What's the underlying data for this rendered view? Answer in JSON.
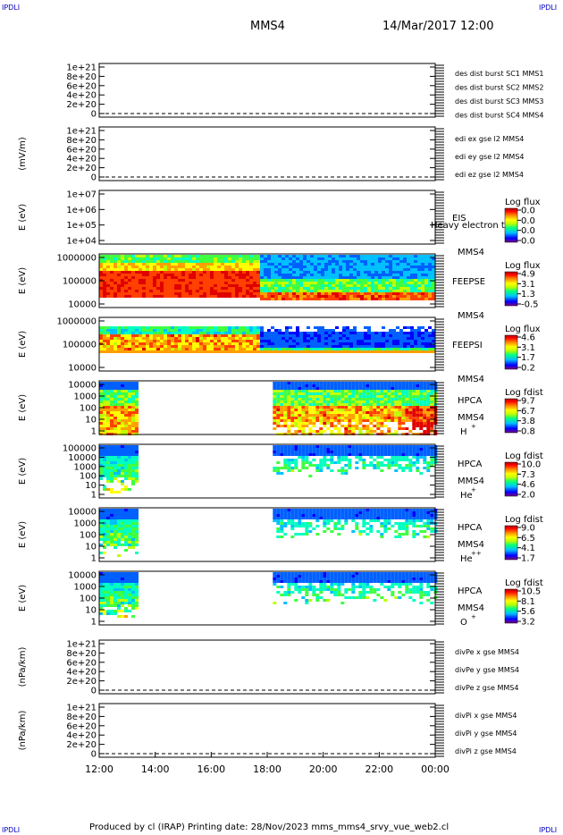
{
  "header": {
    "corner_left": "IPDLI",
    "corner_right": "IPDLI",
    "spacecraft": "MMS4",
    "datetime": "14/Mar/2017 12:00"
  },
  "footer": {
    "corner_left": "IPDLI",
    "corner_right": "IPDLI",
    "credit": "Produced by cl (IRAP)   Printing date: 28/Nov/2023   mms_mms4_srvy_vue_web2.cl"
  },
  "colors": {
    "red": "#e00000",
    "green": "#00c000",
    "blue": "#0000c0",
    "magenta": "#d000d0",
    "colorbar": [
      "#800080",
      "#0000ff",
      "#00c0ff",
      "#00ff80",
      "#c0ff00",
      "#ffff00",
      "#ff8000",
      "#ff0000",
      "#b00000"
    ]
  },
  "chart_data": {
    "type": "heatmap",
    "x_ticks": [
      "12:00",
      "14:00",
      "16:00",
      "18:00",
      "20:00",
      "22:00",
      "00:00"
    ],
    "x_range_hours": [
      12,
      24
    ],
    "panels": [
      {
        "key": "p1",
        "kind": "line",
        "ylabel": "",
        "yticks": [
          "1e+21",
          "8e+20",
          "6e+20",
          "4e+20",
          "2e+20",
          "0"
        ],
        "legend": [
          {
            "text": "des dist burst SC1 MMS1",
            "color": "blue"
          },
          {
            "text": "des dist burst SC2 MMS2",
            "color": "magenta"
          },
          {
            "text": "des dist burst SC3 MMS3",
            "color": "red"
          },
          {
            "text": "des dist burst SC4 MMS4",
            "color": "green"
          }
        ]
      },
      {
        "key": "p2",
        "kind": "line",
        "ylabel": "(mV/m)",
        "yticks": [
          "1e+21",
          "8e+20",
          "6e+20",
          "4e+20",
          "2e+20",
          "0"
        ],
        "legend": [
          {
            "text": "edi ex gse l2 MMS4",
            "color": "red"
          },
          {
            "text": "edi ey gse l2 MMS4",
            "color": "green"
          },
          {
            "text": "edi ez gse l2 MMS4",
            "color": "blue"
          }
        ]
      },
      {
        "key": "p3",
        "kind": "spec",
        "ylabel": "E (eV)",
        "yticks": [
          "1e+07",
          "1e+06",
          "1e+05",
          "1e+04"
        ],
        "instrument": "EIS",
        "sc": "MMS4",
        "overlay": "Heavy electron tof",
        "cb_title": "Log flux",
        "cb_ticks": [
          "0.0",
          "0.0",
          "0.0",
          "0.0"
        ],
        "coverage": []
      },
      {
        "key": "p4",
        "kind": "spec",
        "ylabel": "E (eV)",
        "yticks": [
          "1000000",
          "100000",
          "10000"
        ],
        "instrument": "FEEPSE",
        "sc": "MMS4",
        "cb_title": "Log flux",
        "cb_ticks": [
          "4.9",
          "3.1",
          "1.3",
          "-0.5"
        ],
        "coverage": [
          [
            12.0,
            24.0
          ]
        ]
      },
      {
        "key": "p5",
        "kind": "spec",
        "ylabel": "E (eV)",
        "yticks": [
          "1000000",
          "100000",
          "10000"
        ],
        "instrument": "FEEPSI",
        "sc": "MMS4",
        "cb_title": "Log flux",
        "cb_ticks": [
          "4.6",
          "3.1",
          "1.7",
          "0.2"
        ],
        "coverage": [
          [
            12.0,
            24.0
          ]
        ]
      },
      {
        "key": "p6",
        "kind": "spec",
        "ylabel": "E (eV)",
        "yticks": [
          "10000",
          "1000",
          "100",
          "10",
          "1"
        ],
        "instrument": "HPCA",
        "sc": "MMS4",
        "species": "H",
        "charge": "+",
        "cb_title": "Log fdist",
        "cb_ticks": [
          "9.7",
          "6.7",
          "3.8",
          "0.8"
        ],
        "coverage": [
          [
            12.0,
            13.4
          ],
          [
            18.2,
            24.0
          ]
        ]
      },
      {
        "key": "p7",
        "kind": "spec",
        "ylabel": "E (eV)",
        "yticks": [
          "100000",
          "10000",
          "1000",
          "100",
          "10",
          "1"
        ],
        "instrument": "HPCA",
        "sc": "MMS4",
        "species": "He",
        "charge": "+",
        "cb_title": "Log fdist",
        "cb_ticks": [
          "10.0",
          "7.3",
          "4.6",
          "2.0"
        ],
        "coverage": [
          [
            12.0,
            13.4
          ],
          [
            18.2,
            24.0
          ]
        ]
      },
      {
        "key": "p8",
        "kind": "spec",
        "ylabel": "E (eV)",
        "yticks": [
          "10000",
          "1000",
          "100",
          "10",
          "1"
        ],
        "instrument": "HPCA",
        "sc": "MMS4",
        "species": "He",
        "charge": "++",
        "cb_title": "Log fdist",
        "cb_ticks": [
          "9.0",
          "6.5",
          "4.1",
          "1.7"
        ],
        "coverage": [
          [
            12.0,
            13.4
          ],
          [
            18.2,
            24.0
          ]
        ]
      },
      {
        "key": "p9",
        "kind": "spec",
        "ylabel": "E (eV)",
        "yticks": [
          "10000",
          "1000",
          "100",
          "10",
          "1"
        ],
        "instrument": "HPCA",
        "sc": "MMS4",
        "species": "O",
        "charge": "+",
        "cb_title": "Log fdist",
        "cb_ticks": [
          "10.5",
          "8.1",
          "5.6",
          "3.2"
        ],
        "coverage": [
          [
            12.0,
            13.4
          ],
          [
            18.2,
            24.0
          ]
        ]
      },
      {
        "key": "p10",
        "kind": "line",
        "ylabel": "(nPa/km)",
        "yticks": [
          "1e+21",
          "8e+20",
          "6e+20",
          "4e+20",
          "2e+20",
          "0"
        ],
        "legend": [
          {
            "text": "divPe x gse MMS4",
            "color": "red"
          },
          {
            "text": "divPe y gse MMS4",
            "color": "green"
          },
          {
            "text": "divPe z gse MMS4",
            "color": "blue"
          }
        ]
      },
      {
        "key": "p11",
        "kind": "line",
        "ylabel": "(nPa/km)",
        "yticks": [
          "1e+21",
          "8e+20",
          "6e+20",
          "4e+20",
          "2e+20",
          "0"
        ],
        "legend": [
          {
            "text": "divPi x gse MMS4",
            "color": "red"
          },
          {
            "text": "divPi y gse MMS4",
            "color": "green"
          },
          {
            "text": "divPi z gse MMS4",
            "color": "blue"
          }
        ]
      }
    ]
  }
}
